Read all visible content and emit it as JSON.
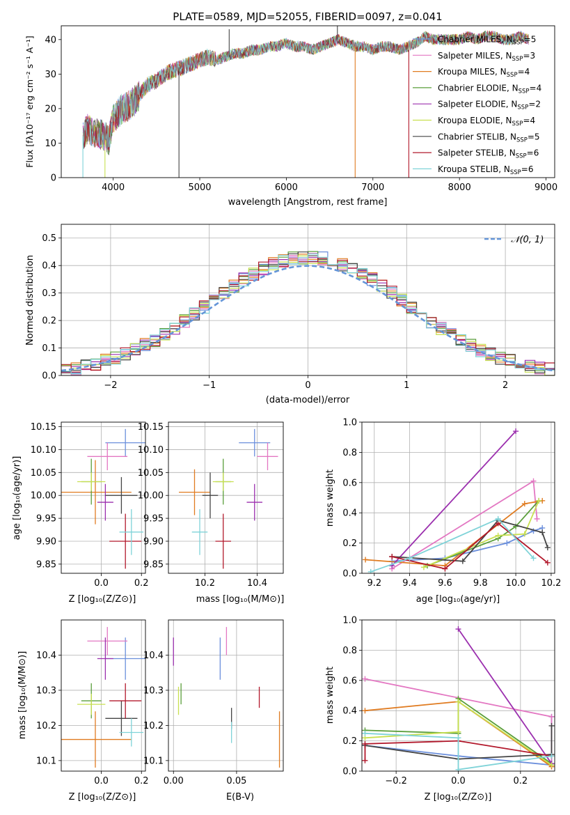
{
  "colors": {
    "blue": "#6b8fdc",
    "pink": "#e377c2",
    "orange": "#e07b20",
    "green": "#5a9e3a",
    "purple": "#9b2fae",
    "yellow": "#c8e050",
    "darkgray": "#444444",
    "red": "#b2182b",
    "cyan": "#7fd3d8",
    "grid": "#b0b0b0",
    "gaussian": "#6495d8"
  },
  "chart_data": [
    {
      "id": "spectrum",
      "type": "line",
      "title": "PLATE=0589, MJD=52055, FIBERID=0097, z=0.041",
      "xlabel": "wavelength [Angstrom, rest frame]",
      "ylabel": "Flux [fλ10⁻¹⁷ erg cm⁻² s⁻¹ A⁻¹]",
      "xlim": [
        3400,
        9100
      ],
      "ylim": [
        0,
        44
      ],
      "xticks": [
        4000,
        5000,
        6000,
        7000,
        8000,
        9000
      ],
      "yticks": [
        0,
        10,
        20,
        30,
        40
      ],
      "grid": false,
      "legend": "top-right",
      "envelope": {
        "x": [
          3650,
          3700,
          3800,
          3900,
          3950,
          4000,
          4100,
          4200,
          4300,
          4400,
          4500,
          4600,
          4700,
          4800,
          4900,
          5000,
          5100,
          5200,
          5300,
          5400,
          5500,
          5600,
          5700,
          5800,
          5900,
          6000,
          6100,
          6200,
          6300,
          6400,
          6500,
          6600,
          6700,
          6800,
          6900,
          7000,
          7100,
          7200,
          7300,
          7400,
          7500,
          7600,
          7700,
          7800,
          7900,
          8000,
          8100,
          8200,
          8300,
          8400,
          8500,
          8600,
          8700,
          8800
        ],
        "y": [
          12,
          14,
          13,
          12,
          11,
          17,
          20,
          21,
          24,
          27,
          28,
          30,
          31,
          32,
          33,
          34,
          35,
          34,
          35,
          36,
          36,
          37,
          37,
          38,
          38,
          39,
          38,
          38,
          37,
          38,
          39,
          40,
          39,
          38,
          38,
          37,
          38,
          38,
          37,
          38,
          39,
          41,
          40,
          40,
          40,
          40,
          41,
          40,
          41,
          41,
          40,
          40,
          41,
          40
        ]
      },
      "spikes": [
        {
          "x": 3650,
          "y0": 0,
          "y1": 12,
          "color": "cyan"
        },
        {
          "x": 3905,
          "y0": 0,
          "y1": 8,
          "color": "yellow"
        },
        {
          "x": 4760,
          "y0": 0,
          "y1": 32,
          "color": "darkgray"
        },
        {
          "x": 5340,
          "y0": 35,
          "y1": 43,
          "color": "darkgray"
        },
        {
          "x": 6590,
          "y0": 40,
          "y1": 44,
          "color": "darkgray"
        },
        {
          "x": 6795,
          "y0": 0,
          "y1": 38,
          "color": "orange"
        },
        {
          "x": 7415,
          "y0": 0,
          "y1": 37,
          "color": "red"
        }
      ],
      "series": [
        {
          "name": "Chabrier MILES, Nₛₛₚ=5",
          "label_main": "Chabrier MILES, N",
          "label_sub": "SSP",
          "label_tail": "=5",
          "color": "blue"
        },
        {
          "name": "Salpeter MILES, Nₛₛₚ=3",
          "label_main": "Salpeter MILES, N",
          "label_sub": "SSP",
          "label_tail": "=3",
          "color": "pink"
        },
        {
          "name": "Kroupa MILES, Nₛₛₚ=4",
          "label_main": "Kroupa MILES, N",
          "label_sub": "SSP",
          "label_tail": "=4",
          "color": "orange"
        },
        {
          "name": "Chabrier ELODIE, Nₛₛₚ=4",
          "label_main": "Chabrier ELODIE, N",
          "label_sub": "SSP",
          "label_tail": "=4",
          "color": "green"
        },
        {
          "name": "Salpeter ELODIE, Nₛₛₚ=2",
          "label_main": "Salpeter ELODIE, N",
          "label_sub": "SSP",
          "label_tail": "=2",
          "color": "purple"
        },
        {
          "name": "Kroupa ELODIE, Nₛₛₚ=4",
          "label_main": "Kroupa ELODIE, N",
          "label_sub": "SSP",
          "label_tail": "=4",
          "color": "yellow"
        },
        {
          "name": "Chabrier STELIB, Nₛₛₚ=5",
          "label_main": "Chabrier STELIB, N",
          "label_sub": "SSP",
          "label_tail": "=5",
          "color": "darkgray"
        },
        {
          "name": "Salpeter STELIB, Nₛₛₚ=6",
          "label_main": "Salpeter STELIB, N",
          "label_sub": "SSP",
          "label_tail": "=6",
          "color": "red"
        },
        {
          "name": "Kroupa STELIB, Nₛₛₚ=6",
          "label_main": "Kroupa STELIB, N",
          "label_sub": "SSP",
          "label_tail": "=6",
          "color": "cyan"
        }
      ]
    },
    {
      "id": "residuals",
      "type": "line",
      "xlabel": "(data-model)/error",
      "ylabel": "Normed distribution",
      "xlim": [
        -2.5,
        2.5
      ],
      "ylim": [
        0,
        0.55
      ],
      "xticks": [
        -2,
        -1,
        0,
        1,
        2
      ],
      "yticks": [
        0.0,
        0.1,
        0.2,
        0.3,
        0.4,
        0.5
      ],
      "grid": true,
      "legend": "top-right",
      "legend_label": "𝒩(0, 1)",
      "bin_width": 0.1,
      "bin_start": -2.5,
      "reference": "Gaussian mean 0, sigma 1"
    },
    {
      "id": "age-vs-Z",
      "type": "scatter",
      "xlabel": "Z [log₁₀(Z/Z⊙)]",
      "ylabel": "age  [log₁₀(age/yr)]",
      "xlim": [
        -0.2,
        0.22
      ],
      "ylim": [
        9.83,
        10.16
      ],
      "xticks": [
        0.0,
        0.2
      ],
      "xticklabels": [
        "0.0",
        "0.2"
      ],
      "yticks": [
        9.85,
        9.9,
        9.95,
        10.0,
        10.05,
        10.1,
        10.15
      ],
      "grid": true,
      "points": [
        {
          "color": "blue",
          "x": 0.12,
          "y": 10.115,
          "xerr": 0.1,
          "yerr": 0.03
        },
        {
          "color": "pink",
          "x": 0.03,
          "y": 10.085,
          "xerr": 0.1,
          "yerr": 0.03
        },
        {
          "color": "orange",
          "x": -0.03,
          "y": 10.007,
          "xerr": 0.18,
          "yerr": 0.07
        },
        {
          "color": "green",
          "x": -0.05,
          "y": 10.03,
          "xerr": 0.05,
          "yerr": 0.05
        },
        {
          "color": "purple",
          "x": 0.02,
          "y": 9.985,
          "xerr": 0.04,
          "yerr": 0.04
        },
        {
          "color": "yellow",
          "x": -0.05,
          "y": 10.03,
          "xerr": 0.07,
          "yerr": 0.02
        },
        {
          "color": "darkgray",
          "x": 0.1,
          "y": 10.0,
          "xerr": 0.08,
          "yerr": 0.04
        },
        {
          "color": "red",
          "x": 0.12,
          "y": 9.9,
          "xerr": 0.08,
          "yerr": 0.06
        },
        {
          "color": "cyan",
          "x": 0.15,
          "y": 9.92,
          "xerr": 0.06,
          "yerr": 0.05
        }
      ]
    },
    {
      "id": "age-vs-mass",
      "type": "scatter",
      "xlabel": "mass [log₁₀(M/M⊙)]",
      "ylabel": "",
      "xlim": [
        10.06,
        10.5
      ],
      "ylim": [
        9.83,
        10.16
      ],
      "xticks": [
        10.2,
        10.4
      ],
      "xticklabels": [
        "10.2",
        "10.4"
      ],
      "yticks": [
        9.85,
        9.9,
        9.95,
        10.0,
        10.05,
        10.1,
        10.15
      ],
      "grid": true,
      "points": [
        {
          "color": "blue",
          "x": 10.39,
          "y": 10.115,
          "xerr": 0.06,
          "yerr": 0.03
        },
        {
          "color": "pink",
          "x": 10.44,
          "y": 10.085,
          "xerr": 0.04,
          "yerr": 0.03
        },
        {
          "color": "orange",
          "x": 10.16,
          "y": 10.007,
          "xerr": 0.06,
          "yerr": 0.05
        },
        {
          "color": "green",
          "x": 10.27,
          "y": 10.03,
          "xerr": 0.03,
          "yerr": 0.05
        },
        {
          "color": "purple",
          "x": 10.39,
          "y": 9.985,
          "xerr": 0.03,
          "yerr": 0.04
        },
        {
          "color": "yellow",
          "x": 10.27,
          "y": 10.03,
          "xerr": 0.04,
          "yerr": 0.02
        },
        {
          "color": "darkgray",
          "x": 10.22,
          "y": 10.0,
          "xerr": 0.03,
          "yerr": 0.05
        },
        {
          "color": "red",
          "x": 10.27,
          "y": 9.9,
          "xerr": 0.03,
          "yerr": 0.06
        },
        {
          "color": "cyan",
          "x": 10.18,
          "y": 9.92,
          "xerr": 0.03,
          "yerr": 0.05
        }
      ]
    },
    {
      "id": "weight-vs-age",
      "type": "line",
      "xlabel": "age  [log₁₀(age/yr)]",
      "ylabel": "mass weight",
      "xlim": [
        9.13,
        10.22
      ],
      "ylim": [
        0,
        1
      ],
      "xticks": [
        9.2,
        9.4,
        9.6,
        9.8,
        10.0,
        10.2
      ],
      "yticks": [
        0.0,
        0.2,
        0.4,
        0.6,
        0.8,
        1.0
      ],
      "grid": true,
      "series": [
        {
          "color": "blue",
          "x": [
            9.3,
            9.6,
            9.95,
            10.1,
            10.15
          ],
          "y": [
            0.08,
            0.1,
            0.2,
            0.28,
            0.3
          ]
        },
        {
          "color": "pink",
          "x": [
            9.3,
            10.1,
            10.12
          ],
          "y": [
            0.03,
            0.61,
            0.36
          ]
        },
        {
          "color": "orange",
          "x": [
            9.15,
            9.6,
            10.05,
            10.15
          ],
          "y": [
            0.09,
            0.05,
            0.46,
            0.48
          ]
        },
        {
          "color": "green",
          "x": [
            9.5,
            9.9,
            10.0,
            10.13
          ],
          "y": [
            0.05,
            0.23,
            0.31,
            0.48
          ]
        },
        {
          "color": "purple",
          "x": [
            9.3,
            10.0
          ],
          "y": [
            0.05,
            0.94
          ]
        },
        {
          "color": "yellow",
          "x": [
            9.48,
            9.9,
            10.05,
            10.13
          ],
          "y": [
            0.04,
            0.25,
            0.26,
            0.48
          ]
        },
        {
          "color": "darkgray",
          "x": [
            9.3,
            9.7,
            9.9,
            10.15,
            10.18
          ],
          "y": [
            0.11,
            0.08,
            0.35,
            0.27,
            0.17
          ]
        },
        {
          "color": "red",
          "x": [
            9.3,
            9.6,
            9.9,
            10.18
          ],
          "y": [
            0.11,
            0.03,
            0.33,
            0.07
          ]
        },
        {
          "color": "cyan",
          "x": [
            9.18,
            9.4,
            9.9,
            10.1
          ],
          "y": [
            0.01,
            0.1,
            0.36,
            0.1
          ]
        }
      ]
    },
    {
      "id": "mass-vs-Z",
      "type": "scatter",
      "xlabel": "Z [log₁₀(Z/Z⊙)]",
      "ylabel": "mass [log₁₀(M/M⊙)]",
      "xlim": [
        -0.2,
        0.22
      ],
      "ylim": [
        10.07,
        10.5
      ],
      "xticks": [
        0.0,
        0.2
      ],
      "xticklabels": [
        "0.0",
        "0.2"
      ],
      "yticks": [
        10.1,
        10.2,
        10.3,
        10.4
      ],
      "grid": true,
      "points": [
        {
          "color": "blue",
          "x": 0.12,
          "y": 10.39,
          "xerr": 0.1,
          "yerr": 0.06
        },
        {
          "color": "pink",
          "x": 0.03,
          "y": 10.44,
          "xerr": 0.1,
          "yerr": 0.04
        },
        {
          "color": "orange",
          "x": -0.03,
          "y": 10.16,
          "xerr": 0.18,
          "yerr": 0.08
        },
        {
          "color": "green",
          "x": -0.05,
          "y": 10.27,
          "xerr": 0.05,
          "yerr": 0.05
        },
        {
          "color": "purple",
          "x": 0.02,
          "y": 10.39,
          "xerr": 0.04,
          "yerr": 0.06
        },
        {
          "color": "yellow",
          "x": -0.05,
          "y": 10.26,
          "xerr": 0.07,
          "yerr": 0.03
        },
        {
          "color": "darkgray",
          "x": 0.1,
          "y": 10.22,
          "xerr": 0.08,
          "yerr": 0.05
        },
        {
          "color": "red",
          "x": 0.12,
          "y": 10.27,
          "xerr": 0.08,
          "yerr": 0.05
        },
        {
          "color": "cyan",
          "x": 0.15,
          "y": 10.18,
          "xerr": 0.06,
          "yerr": 0.04
        }
      ]
    },
    {
      "id": "mass-vs-ebv",
      "type": "scatter",
      "xlabel": "E(B-V)",
      "ylabel": "",
      "xlim": [
        -0.004,
        0.087
      ],
      "ylim": [
        10.07,
        10.5
      ],
      "xticks": [
        0.0,
        0.05
      ],
      "xticklabels": [
        "0.00",
        "0.05"
      ],
      "yticks": [
        10.1,
        10.2,
        10.3,
        10.4
      ],
      "grid": true,
      "points": [
        {
          "color": "blue",
          "x": 0.037,
          "y": 10.39,
          "xerr": 0.0,
          "yerr": 0.06
        },
        {
          "color": "pink",
          "x": 0.042,
          "y": 10.44,
          "xerr": 0.0,
          "yerr": 0.04
        },
        {
          "color": "orange",
          "x": 0.084,
          "y": 10.16,
          "xerr": 0.0,
          "yerr": 0.08
        },
        {
          "color": "green",
          "x": 0.006,
          "y": 10.29,
          "xerr": 0.0,
          "yerr": 0.03
        },
        {
          "color": "purple",
          "x": 0.0,
          "y": 10.41,
          "xerr": 0.0,
          "yerr": 0.04
        },
        {
          "color": "yellow",
          "x": 0.004,
          "y": 10.27,
          "xerr": 0.0,
          "yerr": 0.04
        },
        {
          "color": "darkgray",
          "x": 0.046,
          "y": 10.22,
          "xerr": 0.0,
          "yerr": 0.03
        },
        {
          "color": "red",
          "x": 0.068,
          "y": 10.28,
          "xerr": 0.0,
          "yerr": 0.03
        },
        {
          "color": "cyan",
          "x": 0.046,
          "y": 10.18,
          "xerr": 0.0,
          "yerr": 0.03
        }
      ]
    },
    {
      "id": "weight-vs-Z",
      "type": "line",
      "xlabel": "Z [log₁₀(Z/Z⊙)]",
      "ylabel": "mass weight",
      "xlim": [
        -0.31,
        0.31
      ],
      "ylim": [
        0,
        1
      ],
      "xticks": [
        -0.2,
        0.0,
        0.2
      ],
      "xticklabels": [
        "−0.2",
        "0.0",
        "0.2"
      ],
      "yticks": [
        0.0,
        0.2,
        0.4,
        0.6,
        0.8,
        1.0
      ],
      "grid": true,
      "series": [
        {
          "color": "blue",
          "x": [
            -0.3,
            0.0,
            0.3,
            0.3
          ],
          "y": [
            0.17,
            0.1,
            0.04,
            0.36
          ]
        },
        {
          "color": "pink",
          "x": [
            -0.3,
            0.3,
            0.3
          ],
          "y": [
            0.61,
            0.36,
            0.03
          ]
        },
        {
          "color": "orange",
          "x": [
            -0.3,
            0.0,
            0.3
          ],
          "y": [
            0.4,
            0.46,
            0.03
          ]
        },
        {
          "color": "green",
          "x": [
            -0.3,
            0.0,
            0.0,
            0.3
          ],
          "y": [
            0.27,
            0.25,
            0.48,
            0.05
          ]
        },
        {
          "color": "purple",
          "x": [
            0.0,
            0.3
          ],
          "y": [
            0.94,
            0.05
          ]
        },
        {
          "color": "yellow",
          "x": [
            -0.3,
            0.0,
            0.0,
            0.3
          ],
          "y": [
            0.22,
            0.26,
            0.46,
            0.04
          ]
        },
        {
          "color": "darkgray",
          "x": [
            -0.3,
            0.0,
            0.3,
            0.3
          ],
          "y": [
            0.17,
            0.08,
            0.11,
            0.3
          ]
        },
        {
          "color": "red",
          "x": [
            -0.3,
            -0.3,
            0.0,
            0.3
          ],
          "y": [
            0.07,
            0.18,
            0.2,
            0.1
          ]
        },
        {
          "color": "cyan",
          "x": [
            -0.3,
            0.0,
            0.0,
            0.3
          ],
          "y": [
            0.25,
            0.22,
            0.01,
            0.1
          ]
        }
      ]
    }
  ]
}
